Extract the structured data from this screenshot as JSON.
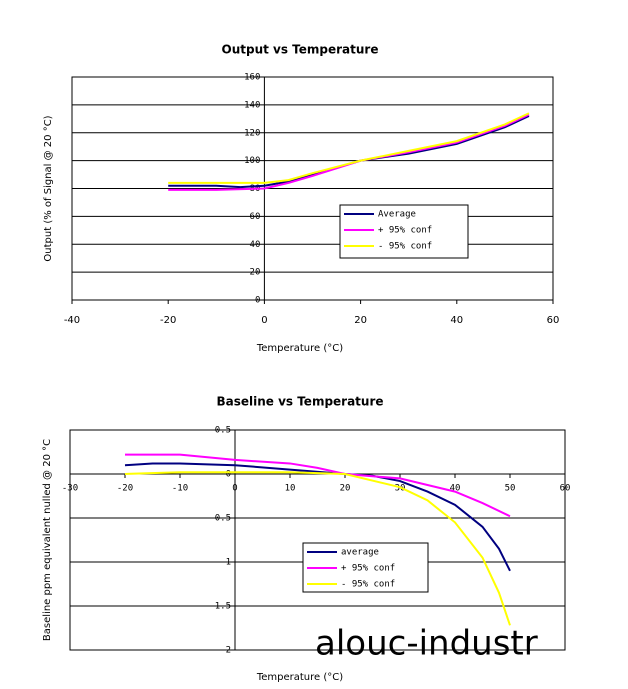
{
  "chart_data": [
    {
      "type": "line",
      "title": "Output vs Temperature",
      "x_label": "Temperature (°C)",
      "y_label": "Output (% of Signal @ 20 °C)",
      "xlim": [
        -40,
        60
      ],
      "xticks": [
        -40,
        -20,
        0,
        20,
        40,
        60
      ],
      "ylim": [
        0,
        160
      ],
      "yticks": [
        0,
        20,
        40,
        60,
        80,
        100,
        120,
        140,
        160
      ],
      "grid": true,
      "legend": "lower right",
      "series": [
        {
          "name": "Average",
          "color": "#000080",
          "x": [
            -20,
            -10,
            -5,
            0,
            5,
            10,
            20,
            30,
            40,
            50,
            55
          ],
          "values": [
            82,
            82,
            81,
            82,
            85,
            90,
            100,
            105,
            112,
            124,
            132
          ]
        },
        {
          "name": "+ 95% conf",
          "color": "#ff00ff",
          "x": [
            -20,
            -10,
            0,
            5,
            10,
            20,
            30,
            40,
            50,
            55
          ],
          "values": [
            79,
            79,
            80,
            84,
            89,
            100,
            106,
            113,
            125,
            133
          ]
        },
        {
          "name": "- 95% conf",
          "color": "#ffff00",
          "x": [
            -20,
            -10,
            0,
            5,
            10,
            20,
            30,
            40,
            50,
            55
          ],
          "values": [
            84,
            84,
            84,
            86,
            91,
            100,
            107,
            114,
            126,
            134
          ]
        }
      ]
    },
    {
      "type": "line",
      "title": "Baseline vs Temperature",
      "x_label": "Temperature (°C)",
      "y_label": "Baseline ppm equivalent nulled @ 20 °C",
      "xlim": [
        -30,
        60
      ],
      "xticks": [
        -30,
        -20,
        -10,
        0,
        10,
        20,
        30,
        40,
        50,
        60
      ],
      "ylim": [
        -2,
        0.5
      ],
      "yticks": [
        {
          "value": -2,
          "label": "2"
        },
        {
          "value": -1.5,
          "label": "1.5"
        },
        {
          "value": -1,
          "label": "1"
        },
        {
          "value": -0.5,
          "label": "0.5"
        },
        0,
        0.5
      ],
      "grid": true,
      "legend": "lower center",
      "series": [
        {
          "name": "average",
          "color": "#000080",
          "x": [
            -20,
            -15,
            -10,
            0,
            10,
            20,
            25,
            30,
            35,
            40,
            45,
            48,
            50
          ],
          "values": [
            0.1,
            0.12,
            0.12,
            0.1,
            0.05,
            0,
            -0.02,
            -0.08,
            -0.2,
            -0.35,
            -0.6,
            -0.85,
            -1.1
          ]
        },
        {
          "name": "+ 95% conf",
          "color": "#ff00ff",
          "x": [
            -20,
            -10,
            0,
            10,
            15,
            20,
            30,
            40,
            45,
            50
          ],
          "values": [
            0.22,
            0.22,
            0.16,
            0.12,
            0.07,
            0,
            -0.05,
            -0.2,
            -0.33,
            -0.48
          ]
        },
        {
          "name": "- 95% conf",
          "color": "#ffff00",
          "x": [
            -20,
            -10,
            0,
            10,
            20,
            30,
            35,
            40,
            45,
            48,
            50
          ],
          "values": [
            0,
            0.02,
            0.02,
            0.02,
            0,
            -0.15,
            -0.3,
            -0.55,
            -0.95,
            -1.35,
            -1.72
          ]
        }
      ]
    }
  ],
  "watermark": "alouc-industr"
}
